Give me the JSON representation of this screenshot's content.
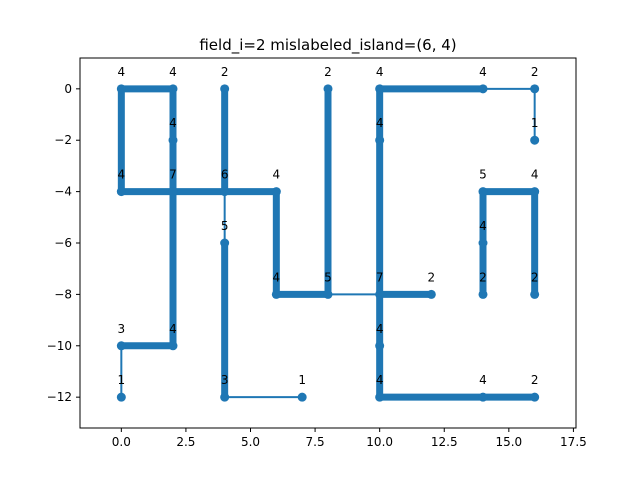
{
  "chart_data": {
    "type": "scatter",
    "title": "field_i=2 mislabeled_island=(6, 4)",
    "xlabel": "",
    "ylabel": "",
    "xlim": [
      -1.6,
      17.6
    ],
    "ylim": [
      -13.2,
      1.2
    ],
    "xticks": [
      0,
      2.5,
      5,
      7.5,
      10,
      12.5,
      15,
      17.5
    ],
    "xtick_labels": [
      "0.0",
      "2.5",
      "5.0",
      "7.5",
      "10.0",
      "12.5",
      "15.0",
      "17.5"
    ],
    "yticks": [
      0,
      -2,
      -4,
      -6,
      -8,
      -10,
      -12
    ],
    "ytick_labels": [
      "0",
      "−2",
      "−4",
      "−6",
      "−8",
      "−10",
      "−12"
    ],
    "grid": false,
    "color": "#1f77b4",
    "nodes": [
      {
        "x": 0,
        "y": 0,
        "label": "4"
      },
      {
        "x": 2,
        "y": 0,
        "label": "4"
      },
      {
        "x": 4,
        "y": 0,
        "label": "2"
      },
      {
        "x": 8,
        "y": 0,
        "label": "2"
      },
      {
        "x": 10,
        "y": 0,
        "label": "4"
      },
      {
        "x": 14,
        "y": 0,
        "label": "4"
      },
      {
        "x": 16,
        "y": 0,
        "label": "2"
      },
      {
        "x": 2,
        "y": -2,
        "label": "4"
      },
      {
        "x": 10,
        "y": -2,
        "label": "4"
      },
      {
        "x": 16,
        "y": -2,
        "label": "1"
      },
      {
        "x": 0,
        "y": -4,
        "label": "4"
      },
      {
        "x": 2,
        "y": -4,
        "label": "7"
      },
      {
        "x": 4,
        "y": -4,
        "label": "6"
      },
      {
        "x": 6,
        "y": -4,
        "label": "4"
      },
      {
        "x": 14,
        "y": -4,
        "label": "5"
      },
      {
        "x": 16,
        "y": -4,
        "label": "4"
      },
      {
        "x": 4,
        "y": -6,
        "label": "5"
      },
      {
        "x": 14,
        "y": -6,
        "label": "4"
      },
      {
        "x": 6,
        "y": -8,
        "label": "4"
      },
      {
        "x": 8,
        "y": -8,
        "label": "5"
      },
      {
        "x": 10,
        "y": -8,
        "label": "7"
      },
      {
        "x": 12,
        "y": -8,
        "label": "2"
      },
      {
        "x": 14,
        "y": -8,
        "label": "2"
      },
      {
        "x": 16,
        "y": -8,
        "label": "2"
      },
      {
        "x": 0,
        "y": -10,
        "label": "3"
      },
      {
        "x": 2,
        "y": -10,
        "label": "4"
      },
      {
        "x": 10,
        "y": -10,
        "label": "4"
      },
      {
        "x": 0,
        "y": -12,
        "label": "1"
      },
      {
        "x": 4,
        "y": -12,
        "label": "3"
      },
      {
        "x": 7,
        "y": -12,
        "label": "1"
      },
      {
        "x": 10,
        "y": -12,
        "label": "4"
      },
      {
        "x": 14,
        "y": -12,
        "label": "4"
      },
      {
        "x": 16,
        "y": -12,
        "label": "2"
      }
    ],
    "thick_segments": [
      [
        [
          0,
          0
        ],
        [
          0,
          -4
        ]
      ],
      [
        [
          0,
          0
        ],
        [
          2,
          0
        ]
      ],
      [
        [
          2,
          0
        ],
        [
          2,
          -10
        ]
      ],
      [
        [
          0,
          -4
        ],
        [
          2,
          -4
        ]
      ],
      [
        [
          0,
          -10
        ],
        [
          2,
          -10
        ]
      ],
      [
        [
          4,
          0
        ],
        [
          4,
          -4
        ]
      ],
      [
        [
          2,
          -4
        ],
        [
          6,
          -4
        ]
      ],
      [
        [
          6,
          -4
        ],
        [
          6,
          -8
        ]
      ],
      [
        [
          6,
          -8
        ],
        [
          8,
          -8
        ]
      ],
      [
        [
          4,
          -6
        ],
        [
          4,
          -12
        ]
      ],
      [
        [
          8,
          0
        ],
        [
          8,
          -8
        ]
      ],
      [
        [
          10,
          0
        ],
        [
          14,
          0
        ]
      ],
      [
        [
          10,
          0
        ],
        [
          10,
          -12
        ]
      ],
      [
        [
          10,
          -8
        ],
        [
          12,
          -8
        ]
      ],
      [
        [
          10,
          -12
        ],
        [
          16,
          -12
        ]
      ],
      [
        [
          14,
          -4
        ],
        [
          16,
          -4
        ]
      ],
      [
        [
          14,
          -4
        ],
        [
          14,
          -8
        ]
      ],
      [
        [
          16,
          -4
        ],
        [
          16,
          -8
        ]
      ]
    ],
    "thin_segments": [
      [
        [
          14,
          0
        ],
        [
          16,
          0
        ]
      ],
      [
        [
          16,
          0
        ],
        [
          16,
          -2
        ]
      ],
      [
        [
          2,
          -4
        ],
        [
          4,
          -4
        ]
      ],
      [
        [
          4,
          -4
        ],
        [
          4,
          -6
        ]
      ],
      [
        [
          8,
          -8
        ],
        [
          10,
          -8
        ]
      ],
      [
        [
          0,
          -10
        ],
        [
          0,
          -12
        ]
      ],
      [
        [
          4,
          -12
        ],
        [
          7,
          -12
        ]
      ]
    ]
  }
}
